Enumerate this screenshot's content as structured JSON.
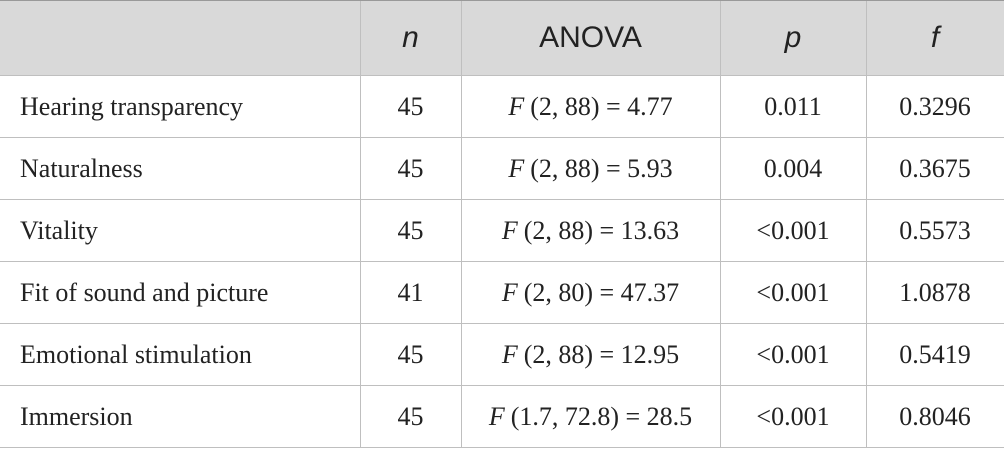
{
  "table": {
    "header": [
      "",
      "n",
      "ANOVA",
      "p",
      "f"
    ],
    "rows": [
      [
        "Hearing transparency",
        "45",
        {
          "stat": "F",
          "text": "(2, 88) = 4.77"
        },
        "0.011",
        "0.3296"
      ],
      [
        "Naturalness",
        "45",
        {
          "stat": "F",
          "text": "(2, 88) = 5.93"
        },
        "0.004",
        "0.3675"
      ],
      [
        "Vitality",
        "45",
        {
          "stat": "F",
          "text": "(2, 88) = 13.63"
        },
        "<0.001",
        "0.5573"
      ],
      [
        "Fit of sound and picture",
        "41",
        {
          "stat": "F",
          "text": "(2, 80) = 47.37"
        },
        "<0.001",
        "1.0878"
      ],
      [
        "Emotional stimulation",
        "45",
        {
          "stat": "F",
          "text": "(2, 88) = 12.95"
        },
        "<0.001",
        "0.5419"
      ],
      [
        "Immersion",
        "45",
        {
          "stat": "F",
          "text": "(1.7, 72.8) = 28.5"
        },
        "<0.001",
        "0.8046"
      ]
    ]
  }
}
